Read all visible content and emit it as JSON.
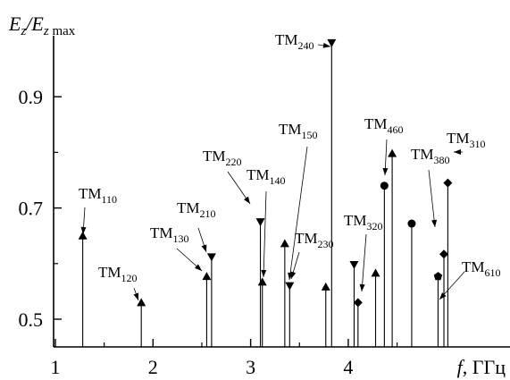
{
  "chart_data": {
    "type": "stem",
    "title": "",
    "xlabel": {
      "italic": "f",
      "text": ", ГГц"
    },
    "ylabel": {
      "E": "E",
      "z": "z",
      "slash": "/",
      "max": "max"
    },
    "xlim": [
      1.0,
      5.2
    ],
    "ylim": [
      0.45,
      1.0
    ],
    "x_ticks": [
      1,
      2,
      3,
      4
    ],
    "y_ticks": [
      0.5,
      0.7,
      0.9
    ],
    "y_tick_labels": [
      "0.5",
      "0.7",
      "0.9"
    ],
    "grid": false,
    "points": [
      {
        "x": 1.28,
        "y": 0.65,
        "marker": "triangle-up"
      },
      {
        "x": 1.88,
        "y": 0.53,
        "marker": "triangle-up"
      },
      {
        "x": 2.55,
        "y": 0.577,
        "marker": "triangle-up"
      },
      {
        "x": 2.6,
        "y": 0.612,
        "marker": "triangle-down"
      },
      {
        "x": 3.1,
        "y": 0.675,
        "marker": "triangle-down"
      },
      {
        "x": 3.12,
        "y": 0.567,
        "marker": "triangle-up"
      },
      {
        "x": 3.35,
        "y": 0.636,
        "marker": "triangle-up"
      },
      {
        "x": 3.4,
        "y": 0.56,
        "marker": "triangle-down"
      },
      {
        "x": 3.77,
        "y": 0.558,
        "marker": "triangle-up"
      },
      {
        "x": 3.83,
        "y": 0.997,
        "marker": "triangle-down"
      },
      {
        "x": 4.06,
        "y": 0.598,
        "marker": "triangle-down"
      },
      {
        "x": 4.1,
        "y": 0.53,
        "marker": "diamond"
      },
      {
        "x": 4.28,
        "y": 0.583,
        "marker": "triangle-up"
      },
      {
        "x": 4.37,
        "y": 0.74,
        "marker": "circle"
      },
      {
        "x": 4.45,
        "y": 0.798,
        "marker": "triangle-up"
      },
      {
        "x": 4.65,
        "y": 0.672,
        "marker": "circle"
      },
      {
        "x": 4.92,
        "y": 0.577,
        "marker": "pentagon"
      },
      {
        "x": 4.98,
        "y": 0.617,
        "marker": "diamond"
      },
      {
        "x": 5.02,
        "y": 0.745,
        "marker": "diamond"
      }
    ],
    "annotations": [
      {
        "main": "TM",
        "sub": "110",
        "target": 0
      },
      {
        "main": "TM",
        "sub": "120",
        "target": 1
      },
      {
        "main": "TM",
        "sub": "130",
        "target": 2
      },
      {
        "main": "TM",
        "sub": "210",
        "target": 3
      },
      {
        "main": "TM",
        "sub": "220",
        "target": 4
      },
      {
        "main": "TM",
        "sub": "140",
        "target": 5
      },
      {
        "main": "TM",
        "sub": "150",
        "target": 6
      },
      {
        "main": "TM",
        "sub": "230",
        "target": 7
      },
      {
        "main": "TM",
        "sub": "240",
        "target": 9
      },
      {
        "main": "TM",
        "sub": "320",
        "target": 11
      },
      {
        "main": "TM",
        "sub": "460",
        "target": 13
      },
      {
        "main": "TM",
        "sub": "380",
        "target": 17
      },
      {
        "main": "TM",
        "sub": "310",
        "target": 18
      },
      {
        "main": "TM",
        "sub": "610",
        "target": 16
      }
    ]
  }
}
